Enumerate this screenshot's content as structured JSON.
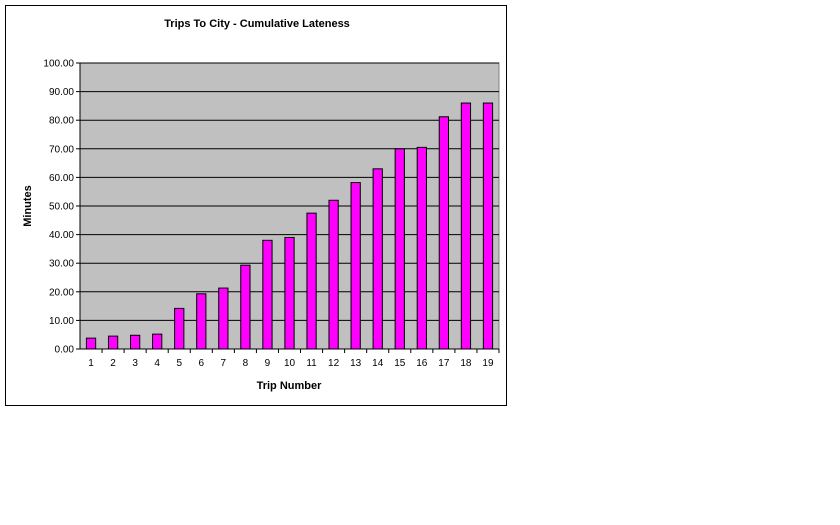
{
  "chart_data": {
    "type": "bar",
    "title": "Trips To City - Cumulative Lateness",
    "xlabel": "Trip Number",
    "ylabel": "Minutes",
    "categories": [
      "1",
      "2",
      "3",
      "4",
      "5",
      "6",
      "7",
      "8",
      "9",
      "10",
      "11",
      "12",
      "13",
      "14",
      "15",
      "16",
      "17",
      "18",
      "19"
    ],
    "values": [
      3.8,
      4.5,
      4.8,
      5.2,
      14.2,
      19.3,
      21.3,
      29.3,
      38.0,
      39.0,
      47.5,
      52.0,
      58.2,
      63.0,
      70.0,
      70.5,
      81.2,
      86.0,
      86.0
    ],
    "ylim": [
      0,
      100
    ],
    "yticks": [
      "0.00",
      "10.00",
      "20.00",
      "30.00",
      "40.00",
      "50.00",
      "60.00",
      "70.00",
      "80.00",
      "90.00",
      "100.00"
    ],
    "grid": true,
    "legend": "none",
    "colors": {
      "bar_fill": "#FF00FF",
      "bar_stroke": "#000000",
      "plot_background": "#C0C0C0",
      "gridline": "#000000"
    }
  }
}
